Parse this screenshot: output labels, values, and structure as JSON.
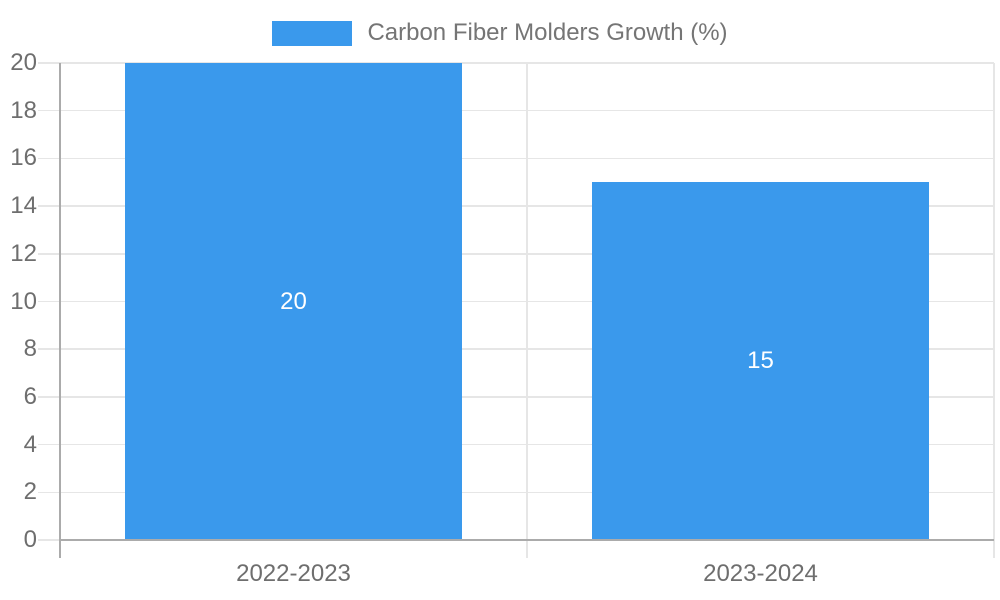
{
  "chart_data": {
    "type": "bar",
    "title": "Carbon Fiber Molders Growth (%)",
    "categories": [
      "2022-2023",
      "2023-2024"
    ],
    "values": [
      20,
      15
    ],
    "bar_labels": [
      "20",
      "15"
    ],
    "xlabel": "",
    "ylabel": "",
    "ylim": [
      0,
      20
    ],
    "yticks": [
      0,
      2,
      4,
      6,
      8,
      10,
      12,
      14,
      16,
      18,
      20
    ],
    "grid": true,
    "legend_position": "top-center",
    "colors": {
      "bar": "#3A99EC",
      "grid": "#E6E6E6",
      "axis": "#ABABAB",
      "tick_text": "#6E6E6E",
      "legend_text": "#757575",
      "bar_label_text": "#FFFFFF",
      "background": "#FFFFFF"
    }
  }
}
